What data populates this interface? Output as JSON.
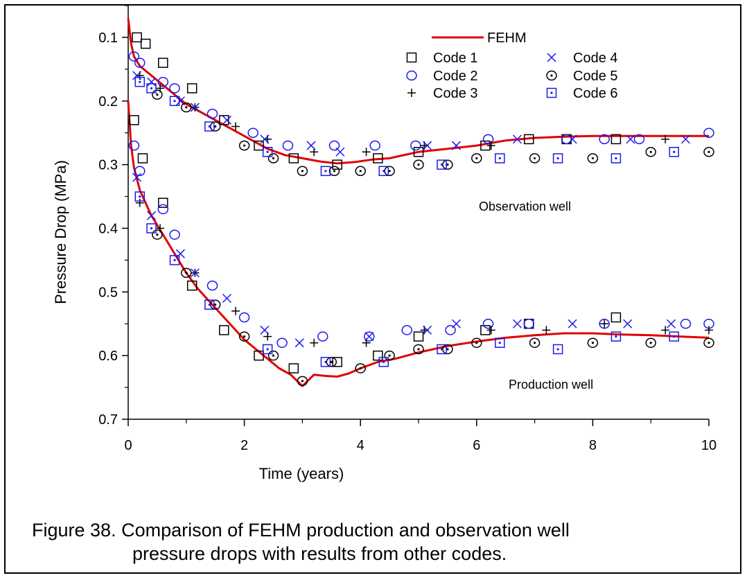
{
  "chart_data": {
    "type": "scatter",
    "xlabel": "Time (years)",
    "ylabel": "Pressure Drop (MPa)",
    "xlim": [
      0,
      10
    ],
    "ylim": [
      0.7,
      0.05
    ],
    "y_inverted": true,
    "xticks": [
      "0",
      "2",
      "4",
      "6",
      "8",
      "10"
    ],
    "yticks": [
      "0.1",
      "0.2",
      "0.3",
      "0.4",
      "0.5",
      "0.6",
      "0.7"
    ],
    "grid": false,
    "legend_position": "top-right",
    "annotations": [
      "Observation well",
      "Production well"
    ],
    "series": [
      {
        "name": "FEHM",
        "marker": "line",
        "color": "#e00000",
        "curves": [
          {
            "x": [
              0.0,
              0.05,
              0.1,
              0.2,
              0.4,
              0.6,
              0.8,
              1.0,
              1.2,
              1.5,
              1.8,
              2.1,
              2.4,
              2.7,
              3.0,
              3.3,
              3.6,
              3.9,
              4.2,
              4.5,
              5.0,
              5.5,
              6.0,
              6.5,
              7.0,
              7.5,
              8.0,
              8.5,
              9.0,
              9.5,
              10.0
            ],
            "y": [
              0.07,
              0.11,
              0.13,
              0.145,
              0.16,
              0.175,
              0.19,
              0.205,
              0.215,
              0.23,
              0.245,
              0.26,
              0.275,
              0.285,
              0.29,
              0.295,
              0.298,
              0.296,
              0.292,
              0.29,
              0.28,
              0.275,
              0.27,
              0.262,
              0.258,
              0.256,
              0.255,
              0.255,
              0.255,
              0.255,
              0.255
            ]
          },
          {
            "x": [
              0.0,
              0.05,
              0.1,
              0.2,
              0.3,
              0.4,
              0.6,
              0.8,
              1.0,
              1.2,
              1.4,
              1.6,
              1.8,
              2.0,
              2.2,
              2.4,
              2.6,
              2.8,
              3.0,
              3.2,
              3.4,
              3.6,
              3.8,
              4.0,
              4.3,
              4.6,
              5.0,
              5.5,
              6.0,
              6.5,
              7.0,
              7.5,
              8.0,
              8.5,
              9.0,
              9.5,
              10.0
            ],
            "y": [
              0.2,
              0.27,
              0.305,
              0.34,
              0.36,
              0.38,
              0.41,
              0.44,
              0.47,
              0.495,
              0.515,
              0.535,
              0.555,
              0.575,
              0.59,
              0.605,
              0.62,
              0.63,
              0.648,
              0.63,
              0.632,
              0.633,
              0.628,
              0.62,
              0.61,
              0.605,
              0.595,
              0.585,
              0.578,
              0.572,
              0.568,
              0.565,
              0.565,
              0.567,
              0.568,
              0.57,
              0.572
            ]
          }
        ]
      },
      {
        "name": "Code 1",
        "marker": "square",
        "color": "#000000",
        "x": [
          0.1,
          0.15,
          0.25,
          0.3,
          0.6,
          0.6,
          1.1,
          1.1,
          1.65,
          1.65,
          2.25,
          2.25,
          2.85,
          2.85,
          3.6,
          3.6,
          4.3,
          4.3,
          5.0,
          5.0,
          6.15,
          6.15,
          6.9,
          6.9,
          7.55,
          8.4,
          8.4
        ],
        "y": [
          0.23,
          0.1,
          0.29,
          0.11,
          0.36,
          0.14,
          0.49,
          0.18,
          0.56,
          0.23,
          0.6,
          0.27,
          0.62,
          0.29,
          0.61,
          0.3,
          0.6,
          0.29,
          0.57,
          0.28,
          0.56,
          0.27,
          0.55,
          0.26,
          0.26,
          0.54,
          0.26
        ]
      },
      {
        "name": "Code 2",
        "marker": "circle",
        "color": "#1a1aee",
        "x": [
          0.1,
          0.1,
          0.2,
          0.2,
          0.6,
          0.6,
          0.8,
          0.8,
          1.45,
          1.45,
          2.0,
          2.15,
          2.65,
          2.75,
          3.35,
          3.55,
          4.15,
          4.25,
          4.8,
          4.95,
          5.55,
          6.2,
          6.2,
          6.9,
          7.55,
          8.2,
          8.2,
          8.8,
          9.6,
          10.0,
          10.0
        ],
        "y": [
          0.27,
          0.13,
          0.31,
          0.14,
          0.37,
          0.17,
          0.41,
          0.18,
          0.49,
          0.22,
          0.54,
          0.25,
          0.58,
          0.27,
          0.57,
          0.27,
          0.57,
          0.27,
          0.56,
          0.27,
          0.56,
          0.55,
          0.26,
          0.55,
          0.26,
          0.55,
          0.26,
          0.26,
          0.55,
          0.55,
          0.25
        ]
      },
      {
        "name": "Code 3",
        "marker": "plus",
        "color": "#000000",
        "x": [
          0.2,
          0.2,
          0.55,
          0.55,
          1.15,
          1.15,
          1.85,
          1.85,
          2.4,
          2.4,
          3.2,
          3.2,
          4.1,
          4.1,
          5.1,
          5.1,
          6.25,
          6.25,
          7.2,
          8.2,
          9.25,
          9.25,
          10.0
        ],
        "y": [
          0.36,
          0.16,
          0.4,
          0.18,
          0.47,
          0.21,
          0.53,
          0.24,
          0.57,
          0.26,
          0.58,
          0.28,
          0.58,
          0.28,
          0.56,
          0.27,
          0.56,
          0.27,
          0.56,
          0.55,
          0.56,
          0.26,
          0.56
        ]
      },
      {
        "name": "Code 4",
        "marker": "cross",
        "color": "#1a1aee",
        "x": [
          0.15,
          0.15,
          0.4,
          0.4,
          0.9,
          0.9,
          1.15,
          1.15,
          1.7,
          1.7,
          2.35,
          2.35,
          2.95,
          3.15,
          3.65,
          4.15,
          5.15,
          5.15,
          5.65,
          5.65,
          6.7,
          6.7,
          7.65,
          7.65,
          8.6,
          8.65,
          9.35,
          9.6
        ],
        "y": [
          0.32,
          0.16,
          0.38,
          0.17,
          0.44,
          0.2,
          0.47,
          0.21,
          0.51,
          0.23,
          0.56,
          0.26,
          0.58,
          0.27,
          0.28,
          0.57,
          0.56,
          0.27,
          0.55,
          0.27,
          0.55,
          0.26,
          0.55,
          0.26,
          0.55,
          0.26,
          0.55,
          0.26
        ]
      },
      {
        "name": "Code 5",
        "marker": "circle-dot",
        "color": "#000000",
        "x": [
          0.5,
          0.5,
          1.0,
          1.0,
          1.5,
          1.5,
          2.0,
          2.0,
          2.5,
          2.5,
          3.0,
          3.0,
          3.5,
          3.55,
          4.0,
          4.0,
          4.5,
          4.5,
          5.0,
          5.0,
          5.5,
          5.5,
          6.0,
          6.0,
          7.0,
          7.0,
          8.0,
          8.0,
          9.0,
          9.0,
          10.0,
          10.0
        ],
        "y": [
          0.41,
          0.19,
          0.47,
          0.21,
          0.52,
          0.24,
          0.57,
          0.27,
          0.6,
          0.29,
          0.64,
          0.31,
          0.61,
          0.31,
          0.62,
          0.31,
          0.6,
          0.31,
          0.59,
          0.3,
          0.59,
          0.3,
          0.58,
          0.29,
          0.58,
          0.29,
          0.58,
          0.29,
          0.58,
          0.28,
          0.58,
          0.28
        ]
      },
      {
        "name": "Code 6",
        "marker": "square-dot",
        "color": "#1a1aee",
        "x": [
          0.2,
          0.2,
          0.4,
          0.4,
          0.8,
          0.8,
          1.4,
          1.4,
          2.4,
          2.4,
          3.4,
          3.4,
          4.4,
          4.4,
          5.4,
          5.4,
          6.4,
          6.4,
          7.4,
          7.4,
          8.4,
          8.4,
          9.4,
          9.4
        ],
        "y": [
          0.35,
          0.17,
          0.4,
          0.18,
          0.45,
          0.2,
          0.52,
          0.24,
          0.59,
          0.28,
          0.61,
          0.31,
          0.61,
          0.31,
          0.59,
          0.3,
          0.58,
          0.29,
          0.59,
          0.29,
          0.57,
          0.29,
          0.57,
          0.28
        ]
      }
    ]
  },
  "caption": {
    "line1": "Figure 38. Comparison of FEHM production and observation well",
    "line2": "pressure drops with results from other codes."
  }
}
